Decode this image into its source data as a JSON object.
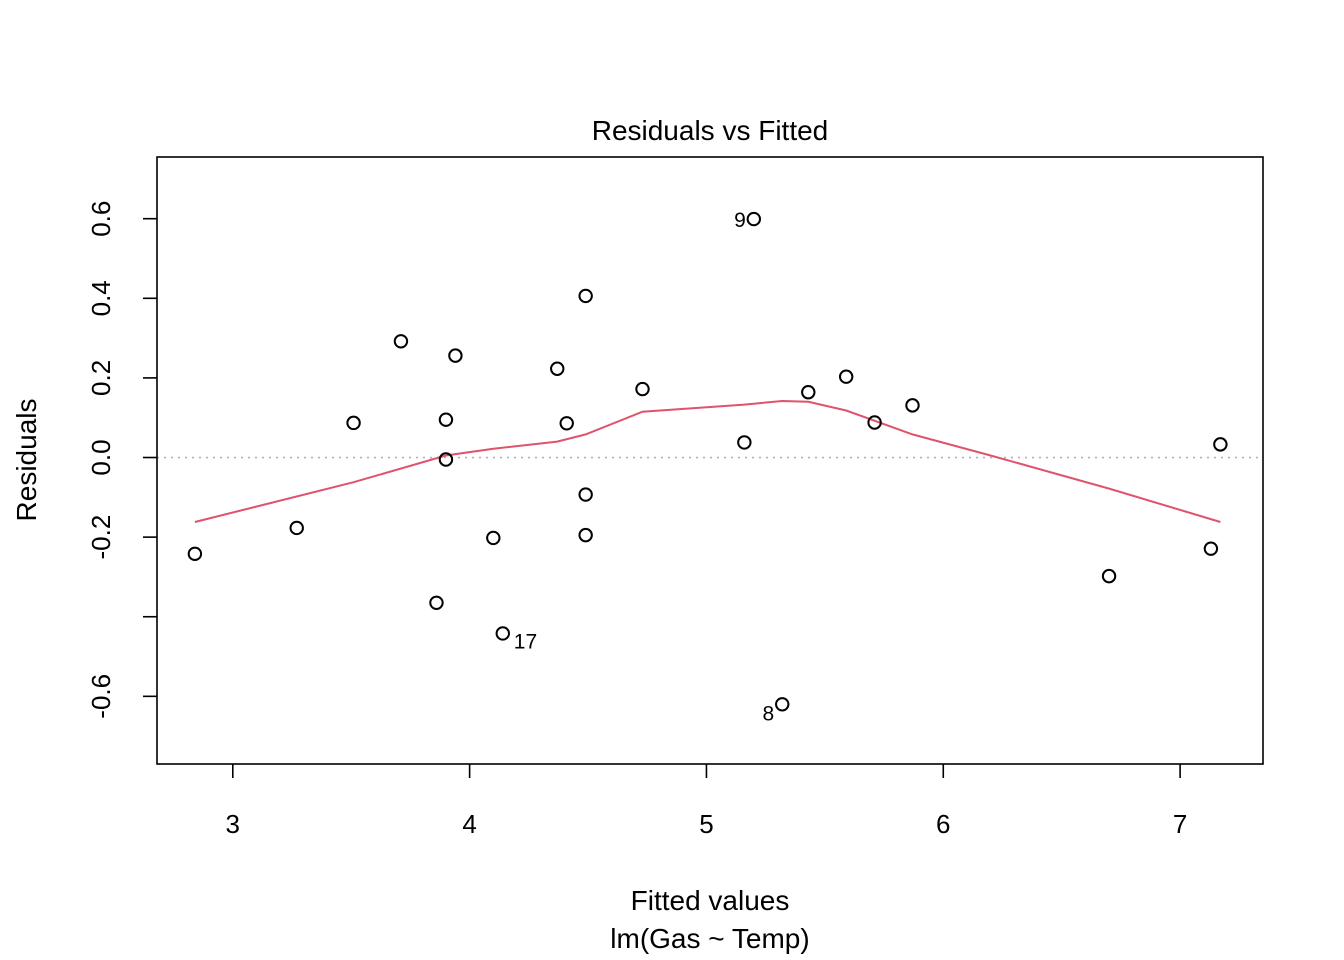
{
  "chart_data": {
    "type": "scatter",
    "title": "Residuals vs Fitted",
    "xlabel": "Fitted values",
    "xlabel_sub": "lm(Gas ~ Temp)",
    "ylabel": "Residuals",
    "xlim": [
      2.68,
      7.35
    ],
    "ylim": [
      -0.77,
      0.755
    ],
    "x_ticks": [
      3,
      4,
      5,
      6,
      7
    ],
    "x_tick_labels": [
      "3",
      "4",
      "5",
      "6",
      "7"
    ],
    "y_ticks": [
      -0.6,
      -0.4,
      -0.2,
      0.0,
      0.2,
      0.4,
      0.6
    ],
    "y_tick_labels": [
      "-0.6",
      "",
      "-0.2",
      "0.0",
      "0.2",
      "0.4",
      "0.6"
    ],
    "grid": false,
    "reference_line": {
      "y": 0,
      "style": "dotted",
      "color": "#b3b3b3"
    },
    "point_color": "#000000",
    "smooth_color": "#df536b",
    "points": [
      {
        "x": 2.84,
        "y": -0.242
      },
      {
        "x": 3.27,
        "y": -0.177
      },
      {
        "x": 3.51,
        "y": 0.087
      },
      {
        "x": 3.71,
        "y": 0.292
      },
      {
        "x": 3.86,
        "y": -0.365
      },
      {
        "x": 3.9,
        "y": 0.095
      },
      {
        "x": 3.9,
        "y": -0.005
      },
      {
        "x": 3.94,
        "y": 0.256
      },
      {
        "x": 4.1,
        "y": -0.202
      },
      {
        "x": 4.14,
        "y": -0.442,
        "label": "17"
      },
      {
        "x": 4.37,
        "y": 0.223
      },
      {
        "x": 4.41,
        "y": 0.086
      },
      {
        "x": 4.49,
        "y": 0.406
      },
      {
        "x": 4.49,
        "y": -0.093
      },
      {
        "x": 4.49,
        "y": -0.195
      },
      {
        "x": 4.73,
        "y": 0.172
      },
      {
        "x": 5.16,
        "y": 0.038
      },
      {
        "x": 5.2,
        "y": 0.599,
        "label": "9"
      },
      {
        "x": 5.32,
        "y": -0.62,
        "label": "8"
      },
      {
        "x": 5.43,
        "y": 0.164
      },
      {
        "x": 5.59,
        "y": 0.203
      },
      {
        "x": 5.71,
        "y": 0.088
      },
      {
        "x": 5.87,
        "y": 0.131
      },
      {
        "x": 6.7,
        "y": -0.298
      },
      {
        "x": 7.13,
        "y": -0.229
      },
      {
        "x": 7.17,
        "y": 0.033
      }
    ],
    "smooth": {
      "x": [
        2.84,
        3.51,
        3.9,
        4.1,
        4.37,
        4.49,
        4.73,
        5.16,
        5.32,
        5.43,
        5.59,
        5.87,
        6.2,
        6.7,
        7.17
      ],
      "y": [
        -0.162,
        -0.062,
        0.005,
        0.022,
        0.04,
        0.058,
        0.115,
        0.133,
        0.142,
        0.14,
        0.118,
        0.058,
        0.005,
        -0.078,
        -0.162
      ]
    }
  }
}
